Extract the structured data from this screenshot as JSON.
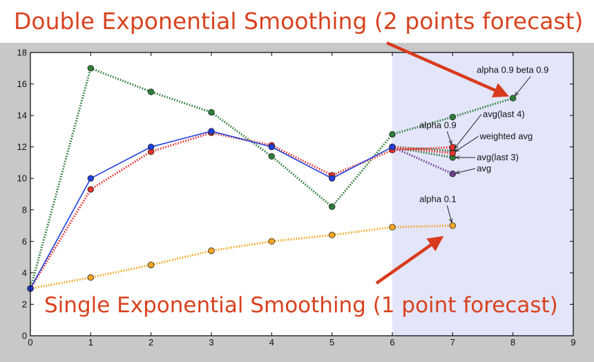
{
  "header": {
    "top_caption": "Double Exponential Smoothing (2 points forecast)",
    "bottom_caption": "Single Exponential Smoothing (1 point forecast)"
  },
  "colors": {
    "caption": "#d8421f",
    "arrow": "#d83a1c",
    "frame_bg": "#c8c8c8",
    "forecast_region": "#e3e5fb",
    "actual": "#1f3fe0",
    "red_dotted": "#e8322c",
    "green_dotted": "#2e7d3a",
    "orange_dotted": "#f5a623",
    "purple": "#6f3f8f"
  },
  "chart_data": {
    "type": "line",
    "xlim": [
      0,
      9
    ],
    "ylim": [
      0,
      18
    ],
    "x_ticks": [
      "0",
      "1",
      "2",
      "3",
      "4",
      "5",
      "6",
      "7",
      "8",
      "9"
    ],
    "y_ticks": [
      "0",
      "2",
      "4",
      "6",
      "8",
      "10",
      "12",
      "14",
      "16",
      "18"
    ],
    "forecast_region_x": [
      6,
      9
    ],
    "series": [
      {
        "key": "actual",
        "style": "solid",
        "color": "#1f3fe0",
        "x": [
          0,
          1,
          2,
          3,
          4,
          5,
          6
        ],
        "y": [
          3,
          10,
          12,
          13,
          12,
          10,
          12
        ]
      },
      {
        "key": "alpha_09",
        "style": "dotted",
        "color": "#e8322c",
        "x": [
          0,
          1,
          2,
          3,
          4,
          5,
          6,
          7
        ],
        "y": [
          3,
          9.3,
          11.7,
          12.9,
          12.1,
          10.2,
          11.8,
          11.98
        ]
      },
      {
        "key": "double",
        "style": "dotted",
        "color": "#2e7d3a",
        "x": [
          0,
          1,
          2,
          3,
          4,
          5,
          6,
          7,
          8
        ],
        "y": [
          3,
          17,
          15.5,
          14.2,
          11.4,
          8.2,
          12.8,
          13.9,
          15.1
        ]
      },
      {
        "key": "alpha_01",
        "style": "dotted",
        "color": "#f5a623",
        "x": [
          0,
          1,
          2,
          3,
          4,
          5,
          6,
          7
        ],
        "y": [
          3,
          3.7,
          4.5,
          5.4,
          6.0,
          6.4,
          6.9,
          7.0
        ]
      },
      {
        "key": "avg_last4",
        "style": "dotted",
        "color": "#2e7d3a",
        "x": [
          6,
          7
        ],
        "y": [
          12,
          11.75
        ]
      },
      {
        "key": "weighted_avg",
        "style": "dotted",
        "color": "#e8322c",
        "x": [
          6,
          7
        ],
        "y": [
          12,
          11.6
        ]
      },
      {
        "key": "avg_last3",
        "style": "dotted",
        "color": "#2e7d3a",
        "x": [
          6,
          7
        ],
        "y": [
          12,
          11.33
        ]
      },
      {
        "key": "avg",
        "style": "dotted",
        "color": "#6f3f8f",
        "x": [
          6,
          7
        ],
        "y": [
          12,
          10.29
        ]
      }
    ],
    "annotations": [
      {
        "text": "alpha 0.9 beta 0.9",
        "x": 7.4,
        "y": 16.7,
        "target": [
          8,
          15.1
        ]
      },
      {
        "text": "avg(last 4)",
        "x": 7.5,
        "y": 13.9,
        "target": [
          7,
          11.75
        ]
      },
      {
        "text": "alpha 0.9",
        "x": 6.45,
        "y": 13.2,
        "target": [
          7,
          11.98
        ]
      },
      {
        "text": "weighted avg",
        "x": 7.45,
        "y": 12.5,
        "target": [
          7,
          11.6
        ]
      },
      {
        "text": "avg(last 3)",
        "x": 7.4,
        "y": 11.15,
        "target": [
          7,
          11.33
        ]
      },
      {
        "text": "avg",
        "x": 7.4,
        "y": 10.45,
        "target": [
          7,
          10.29
        ]
      },
      {
        "text": "alpha 0.1",
        "x": 6.45,
        "y": 8.5,
        "target": [
          7,
          7.0
        ]
      }
    ],
    "big_arrows": [
      {
        "from": "top_caption",
        "target": [
          7.98,
          15.2
        ]
      },
      {
        "from": "bottom_caption",
        "target": [
          6.9,
          6.4
        ]
      }
    ]
  }
}
